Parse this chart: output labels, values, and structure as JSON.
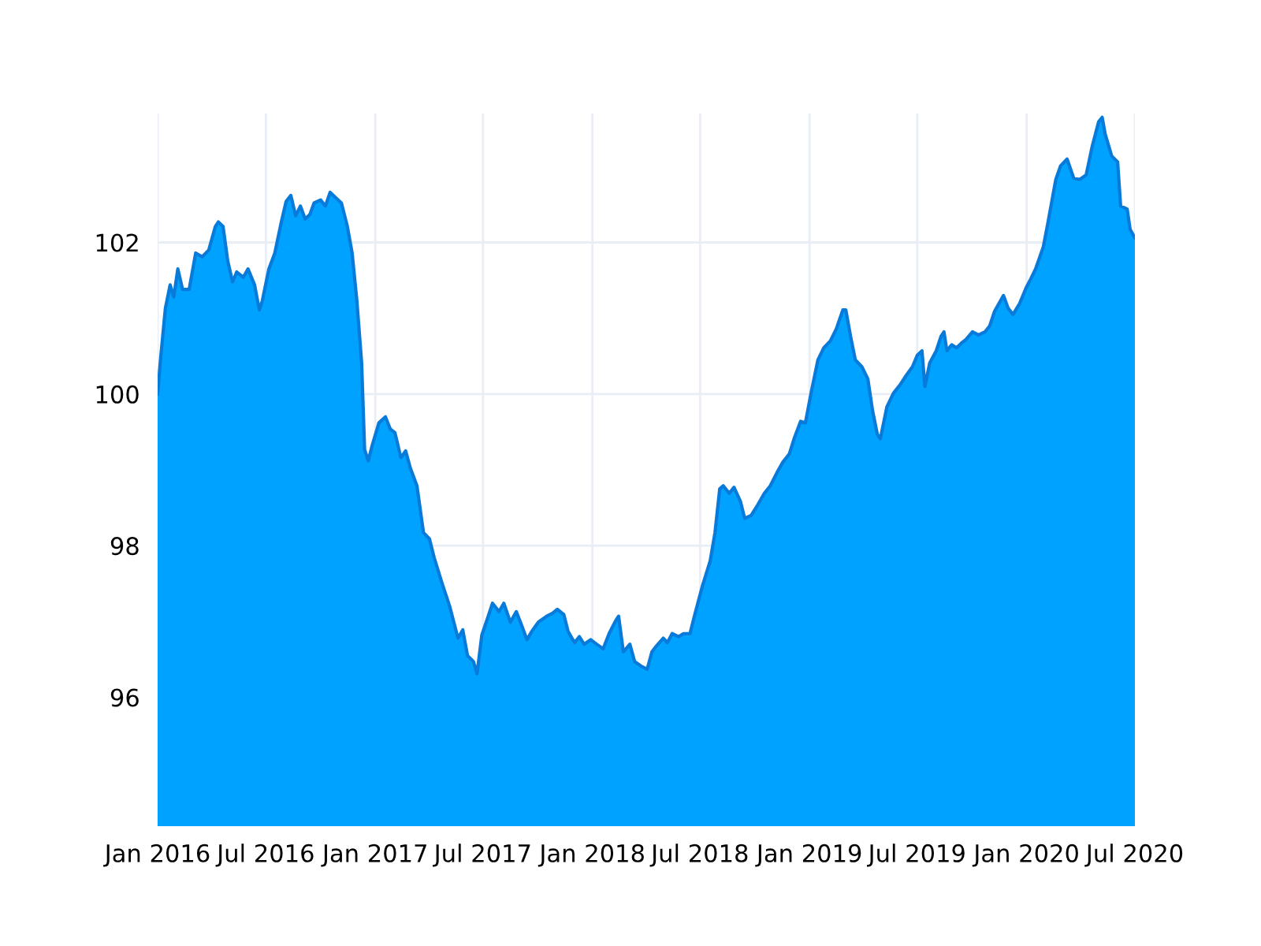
{
  "chart_data": {
    "type": "area",
    "grid": true,
    "xlim": [
      "2016-01-01",
      "2020-07-01"
    ],
    "ylim": [
      94.3,
      103.7
    ],
    "xticks": [
      {
        "value": "2016-01",
        "label": "Jan 2016"
      },
      {
        "value": "2016-07",
        "label": "Jul 2016"
      },
      {
        "value": "2017-01",
        "label": "Jan 2017"
      },
      {
        "value": "2017-07",
        "label": "Jul 2017"
      },
      {
        "value": "2018-01",
        "label": "Jan 2018"
      },
      {
        "value": "2018-07",
        "label": "Jul 2018"
      },
      {
        "value": "2019-01",
        "label": "Jan 2019"
      },
      {
        "value": "2019-07",
        "label": "Jul 2019"
      },
      {
        "value": "2020-01",
        "label": "Jan 2020"
      },
      {
        "value": "2020-07",
        "label": "Jul 2020"
      }
    ],
    "yticks": [
      96,
      98,
      100,
      102
    ],
    "series": [
      {
        "color": "#00a2ff",
        "x": [
          "2016-01-01",
          "2016-01-06",
          "2016-01-14",
          "2016-01-22",
          "2016-01-28",
          "2016-02-04",
          "2016-02-12",
          "2016-02-23",
          "2016-03-05",
          "2016-03-16",
          "2016-03-27",
          "2016-04-07",
          "2016-04-12",
          "2016-04-20",
          "2016-04-28",
          "2016-05-06",
          "2016-05-13",
          "2016-05-24",
          "2016-06-01",
          "2016-06-12",
          "2016-06-20",
          "2016-06-25",
          "2016-07-06",
          "2016-07-16",
          "2016-07-27",
          "2016-08-04",
          "2016-08-12",
          "2016-08-20",
          "2016-08-28",
          "2016-09-05",
          "2016-09-13",
          "2016-09-20",
          "2016-10-01",
          "2016-10-09",
          "2016-10-17",
          "2016-10-25",
          "2016-11-05",
          "2016-11-15",
          "2016-11-23",
          "2016-12-01",
          "2016-12-09",
          "2016-12-14",
          "2016-12-20",
          "2016-12-27",
          "2017-01-07",
          "2017-01-18",
          "2017-01-26",
          "2017-02-03",
          "2017-02-13",
          "2017-02-21",
          "2017-03-01",
          "2017-03-12",
          "2017-03-23",
          "2017-04-02",
          "2017-04-10",
          "2017-04-23",
          "2017-05-06",
          "2017-05-20",
          "2017-05-28",
          "2017-06-05",
          "2017-06-15",
          "2017-06-21",
          "2017-06-29",
          "2017-07-09",
          "2017-07-17",
          "2017-07-28",
          "2017-08-05",
          "2017-08-16",
          "2017-08-26",
          "2017-09-03",
          "2017-09-13",
          "2017-09-21",
          "2017-10-02",
          "2017-10-16",
          "2017-10-26",
          "2017-11-03",
          "2017-11-14",
          "2017-11-21",
          "2017-12-02",
          "2017-12-10",
          "2017-12-18",
          "2017-12-29",
          "2018-01-08",
          "2018-01-19",
          "2018-01-29",
          "2018-02-09",
          "2018-02-14",
          "2018-02-22",
          "2018-03-05",
          "2018-03-13",
          "2018-03-24",
          "2018-04-03",
          "2018-04-11",
          "2018-04-19",
          "2018-04-30",
          "2018-05-07",
          "2018-05-15",
          "2018-05-26",
          "2018-06-03",
          "2018-06-14",
          "2018-06-22",
          "2018-07-05",
          "2018-07-18",
          "2018-07-26",
          "2018-08-03",
          "2018-08-09",
          "2018-08-19",
          "2018-08-27",
          "2018-09-07",
          "2018-09-14",
          "2018-09-25",
          "2018-10-06",
          "2018-10-17",
          "2018-10-27",
          "2018-11-07",
          "2018-11-17",
          "2018-11-28",
          "2018-12-06",
          "2018-12-17",
          "2018-12-25",
          "2019-01-04",
          "2019-01-15",
          "2019-01-25",
          "2019-02-05",
          "2019-02-15",
          "2019-02-26",
          "2019-03-03",
          "2019-03-11",
          "2019-03-19",
          "2019-03-30",
          "2019-04-09",
          "2019-04-17",
          "2019-04-25",
          "2019-04-30",
          "2019-05-11",
          "2019-05-22",
          "2019-06-02",
          "2019-06-12",
          "2019-06-23",
          "2019-07-01",
          "2019-07-09",
          "2019-07-14",
          "2019-07-22",
          "2019-08-02",
          "2019-08-10",
          "2019-08-15",
          "2019-08-20",
          "2019-08-28",
          "2019-09-05",
          "2019-09-13",
          "2019-09-21",
          "2019-10-02",
          "2019-10-12",
          "2019-10-23",
          "2019-10-31",
          "2019-11-08",
          "2019-11-18",
          "2019-11-23",
          "2019-12-01",
          "2019-12-09",
          "2019-12-20",
          "2019-12-31",
          "2020-01-08",
          "2020-01-16",
          "2020-01-29",
          "2020-02-06",
          "2020-02-19",
          "2020-02-27",
          "2020-03-09",
          "2020-03-20",
          "2020-03-30",
          "2020-04-10",
          "2020-04-20",
          "2020-05-01",
          "2020-05-07",
          "2020-05-12",
          "2020-05-23",
          "2020-06-02",
          "2020-06-07",
          "2020-06-18",
          "2020-06-23",
          "2020-07-01"
        ],
        "values": [
          100.0,
          100.47,
          101.13,
          101.44,
          101.28,
          101.65,
          101.38,
          101.38,
          101.86,
          101.81,
          101.9,
          102.21,
          102.27,
          102.21,
          101.75,
          101.48,
          101.61,
          101.54,
          101.65,
          101.44,
          101.11,
          101.23,
          101.65,
          101.86,
          102.27,
          102.54,
          102.62,
          102.35,
          102.48,
          102.31,
          102.37,
          102.52,
          102.56,
          102.48,
          102.66,
          102.6,
          102.52,
          102.21,
          101.86,
          101.23,
          100.41,
          99.27,
          99.12,
          99.33,
          99.62,
          99.7,
          99.54,
          99.49,
          99.16,
          99.25,
          99.02,
          98.79,
          98.17,
          98.09,
          97.84,
          97.51,
          97.2,
          96.78,
          96.89,
          96.55,
          96.47,
          96.31,
          96.82,
          97.05,
          97.24,
          97.13,
          97.24,
          96.99,
          97.13,
          96.97,
          96.76,
          96.87,
          96.99,
          97.07,
          97.11,
          97.16,
          97.09,
          96.87,
          96.72,
          96.8,
          96.7,
          96.76,
          96.7,
          96.64,
          96.84,
          97.01,
          97.07,
          96.6,
          96.7,
          96.47,
          96.41,
          96.37,
          96.6,
          96.68,
          96.78,
          96.72,
          96.84,
          96.8,
          96.84,
          96.84,
          97.09,
          97.47,
          97.8,
          98.17,
          98.75,
          98.79,
          98.69,
          98.77,
          98.58,
          98.36,
          98.4,
          98.54,
          98.69,
          98.79,
          98.96,
          99.1,
          99.21,
          99.41,
          99.64,
          99.62,
          100.03,
          100.45,
          100.61,
          100.7,
          100.86,
          101.11,
          101.11,
          100.76,
          100.45,
          100.36,
          100.2,
          99.78,
          99.47,
          99.41,
          99.83,
          100.01,
          100.12,
          100.24,
          100.36,
          100.51,
          100.57,
          100.1,
          100.41,
          100.57,
          100.76,
          100.82,
          100.57,
          100.65,
          100.61,
          100.67,
          100.72,
          100.82,
          100.78,
          100.82,
          100.9,
          101.09,
          101.23,
          101.3,
          101.13,
          101.05,
          101.19,
          101.4,
          101.52,
          101.65,
          101.94,
          102.27,
          102.83,
          103.01,
          103.1,
          102.85,
          102.83,
          102.89,
          103.26,
          103.59,
          103.65,
          103.43,
          103.14,
          103.06,
          102.48,
          102.44,
          102.17,
          102.06
        ]
      }
    ]
  }
}
